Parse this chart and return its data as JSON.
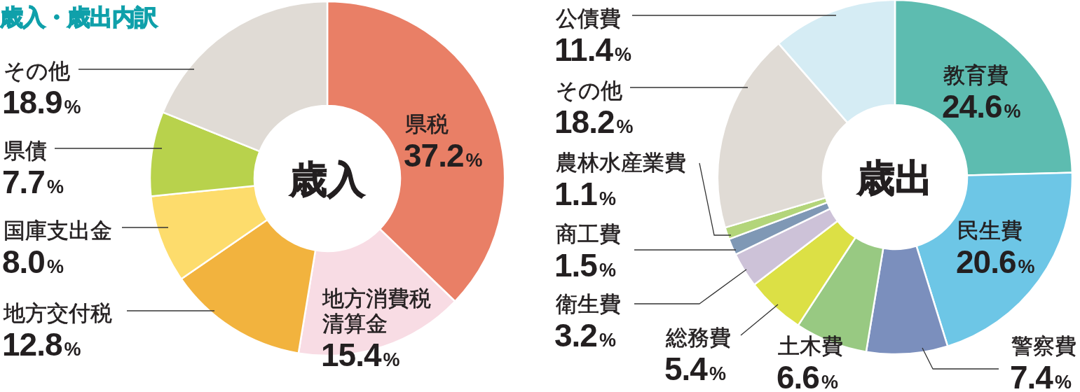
{
  "chart_data": [
    {
      "type": "donut",
      "title": "歳入・歳出内訳",
      "annotations": [
        "歳入"
      ],
      "categories": [
        "県税",
        "地方消費税清算金",
        "地方交付税",
        "国庫支出金",
        "県債",
        "その他"
      ],
      "values": [
        37.2,
        15.4,
        12.8,
        8.0,
        7.7,
        18.9
      ],
      "colors": [
        "#e97f66",
        "#f8dce4",
        "#f2b33e",
        "#fddc6c",
        "#b8d24c",
        "#e0dbd5"
      ],
      "value_labels": [
        "37.2%",
        "15.4%",
        "12.8%",
        "8.0%",
        "7.7%",
        "18.9%"
      ]
    },
    {
      "type": "donut",
      "annotations": [
        "歳出"
      ],
      "categories": [
        "教育費",
        "民生費",
        "警察費",
        "土木費",
        "総務費",
        "衛生費",
        "商工費",
        "農林水産業費",
        "その他",
        "公債費"
      ],
      "values": [
        24.6,
        20.6,
        7.4,
        6.6,
        5.4,
        3.2,
        1.5,
        1.1,
        18.2,
        11.4
      ],
      "colors": [
        "#5dbcb0",
        "#6dc6e6",
        "#7b8fbd",
        "#98c982",
        "#dce045",
        "#cdc2d8",
        "#7f98b5",
        "#b3d57a",
        "#e0dbd5",
        "#d5ecf4"
      ],
      "value_labels": [
        "24.6%",
        "20.6%",
        "7.4%",
        "6.6%",
        "5.4%",
        "3.2%",
        "1.5%",
        "1.1%",
        "18.2%",
        "11.4%"
      ]
    }
  ]
}
